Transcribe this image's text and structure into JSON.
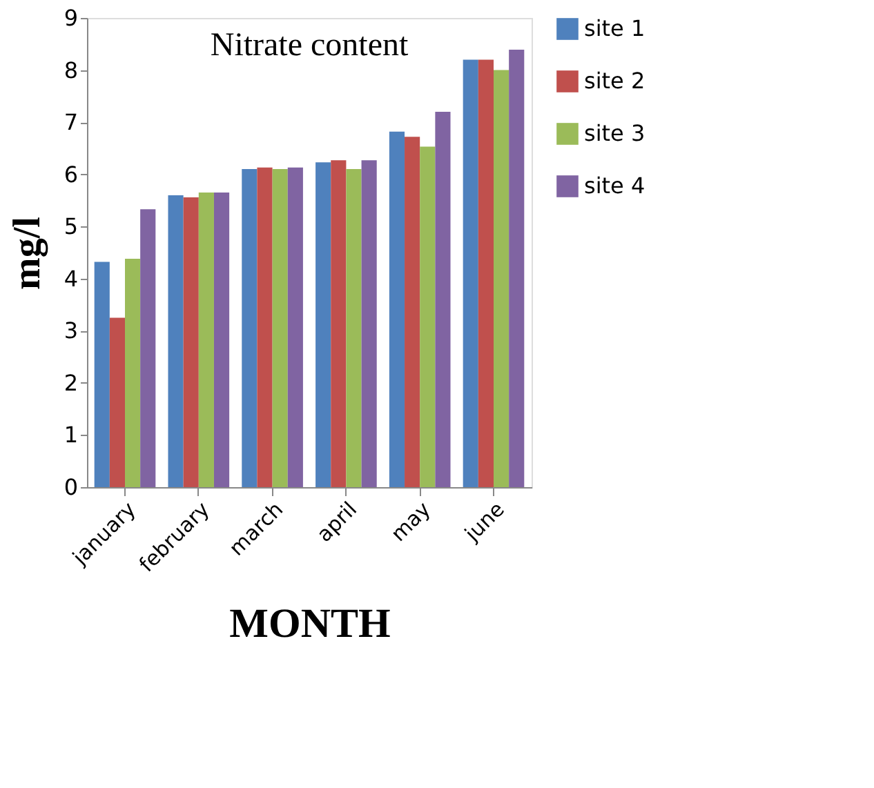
{
  "chart_data": {
    "type": "bar",
    "title": "Nitrate content",
    "xlabel": "MONTH",
    "ylabel": "mg/l",
    "categories": [
      "january",
      "february",
      "march",
      "april",
      "may",
      "june"
    ],
    "series": [
      {
        "name": "site 1",
        "color": "#4f81bd",
        "values": [
          4.32,
          5.6,
          6.1,
          6.23,
          6.82,
          8.2
        ]
      },
      {
        "name": "site 2",
        "color": "#c0504d",
        "values": [
          3.25,
          5.56,
          6.13,
          6.27,
          6.72,
          8.2
        ]
      },
      {
        "name": "site 3",
        "color": "#9bbb59",
        "values": [
          4.38,
          5.65,
          6.1,
          6.1,
          6.53,
          8.0
        ]
      },
      {
        "name": "site 4",
        "color": "#8064a2",
        "values": [
          5.33,
          5.65,
          6.13,
          6.27,
          7.2,
          8.39
        ]
      }
    ],
    "ylim": [
      0,
      9
    ],
    "yticks": [
      0,
      1,
      2,
      3,
      4,
      5,
      6,
      7,
      8,
      9
    ],
    "grid": false,
    "legend": "right"
  }
}
